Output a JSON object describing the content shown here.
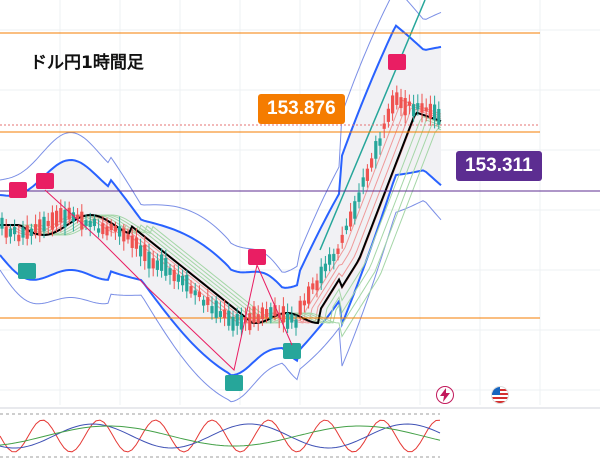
{
  "title": "ドル円1時間足",
  "colors": {
    "orange_level": "#f57c00",
    "purple_level": "#5c2d91",
    "bull_candle": "#26a69a",
    "bear_candle": "#ef5350",
    "marker_high": "#e91e63",
    "marker_low": "#26a69a",
    "bollinger": "#2962ff",
    "sma": "#000000"
  },
  "chart_data": {
    "type": "candlestick",
    "title": "ドル円1時間足",
    "xlabel": "",
    "ylabel": "",
    "price_levels": [
      {
        "value": 153.876,
        "label": "153.876",
        "color": "#f57c00"
      },
      {
        "value": 153.311,
        "label": "153.311",
        "color": "#5c2d91"
      }
    ],
    "grid": true,
    "series": [
      {
        "type": "candles",
        "values_note": ""
      },
      {
        "type": "bollinger_bands"
      },
      {
        "type": "moving_average_ribbon"
      }
    ],
    "oscillator_panel": true,
    "markers": [
      "high",
      "low"
    ]
  },
  "icons": [
    "flash-icon",
    "us-flag-icon"
  ]
}
